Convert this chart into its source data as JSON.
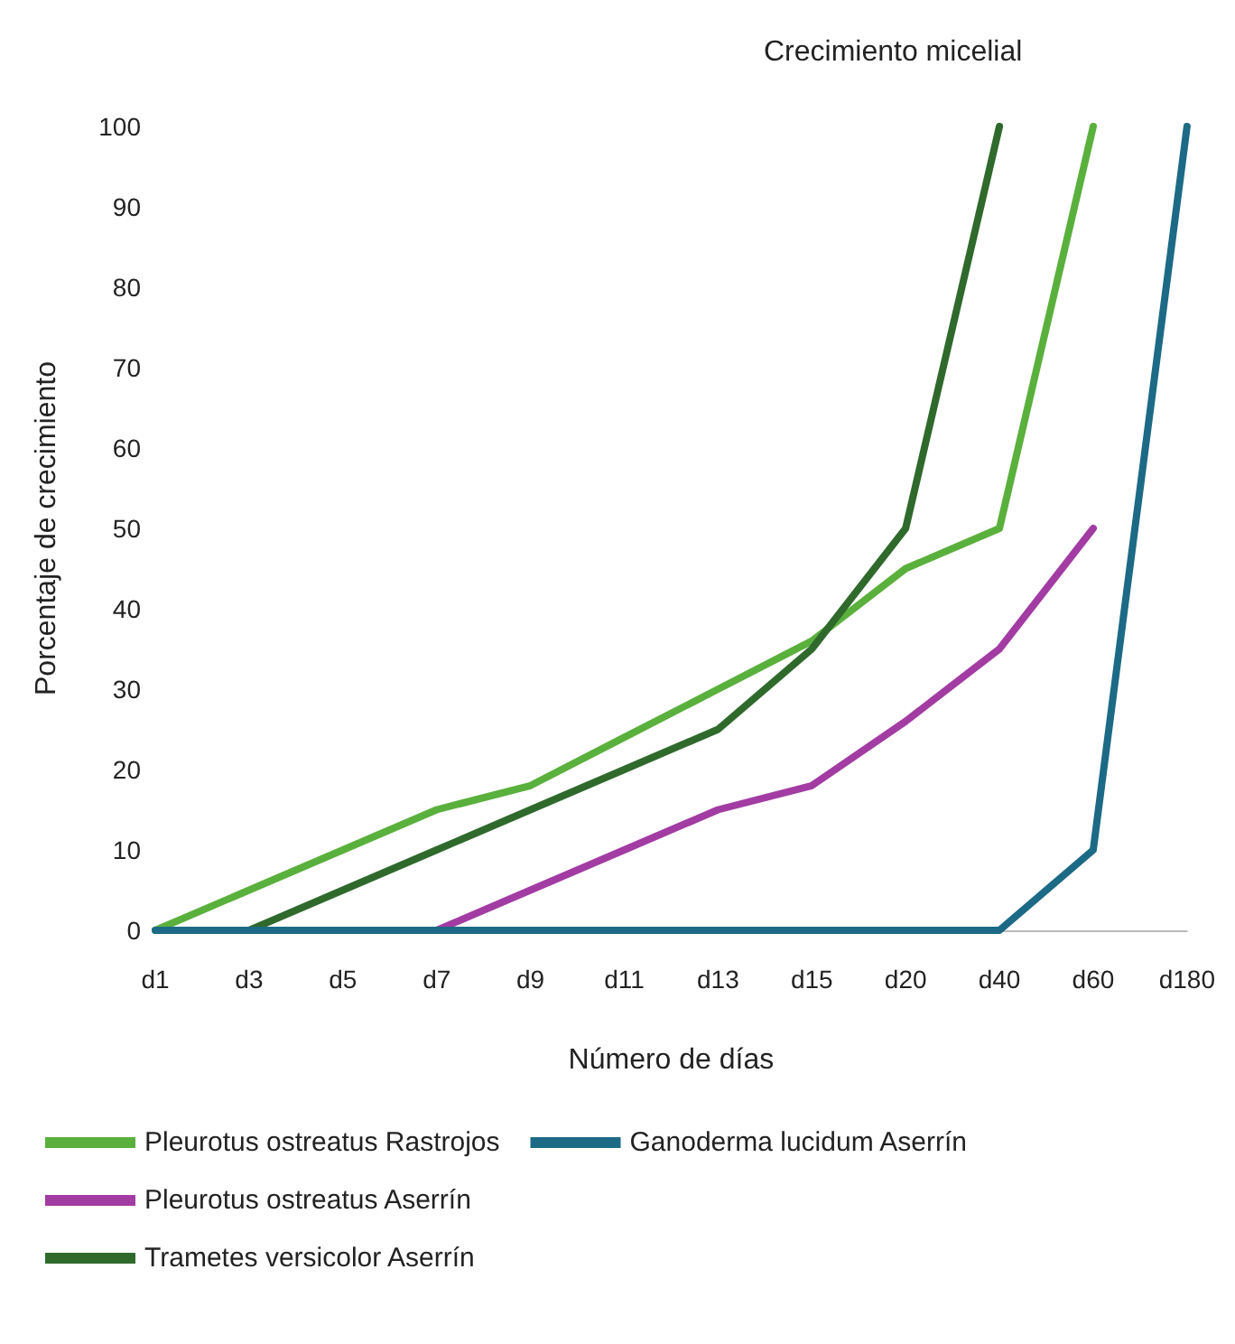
{
  "chart_data": {
    "type": "line",
    "title": "Crecimiento micelial",
    "xlabel": "Número de días",
    "ylabel": "Porcentaje de crecimiento",
    "categories": [
      "d1",
      "d3",
      "d5",
      "d7",
      "d9",
      "d11",
      "d13",
      "d15",
      "d20",
      "d40",
      "d60",
      "d180"
    ],
    "series": [
      {
        "name": "Pleurotus ostreatus Rastrojos",
        "color": "#5ab03c",
        "values": [
          0,
          5,
          10,
          15,
          18,
          24,
          30,
          36,
          45,
          50,
          100,
          null
        ]
      },
      {
        "name": "Pleurotus ostreatus Aserrín",
        "color": "#a23ca3",
        "values": [
          null,
          null,
          null,
          0,
          5,
          10,
          15,
          18,
          26,
          35,
          50,
          null
        ]
      },
      {
        "name": "Trametes versicolor Aserrín",
        "color": "#2f6a2c",
        "values": [
          null,
          0,
          5,
          10,
          15,
          20,
          25,
          35,
          50,
          100,
          null,
          null
        ]
      },
      {
        "name": "Ganoderma lucidum Aserrín",
        "color": "#1c6a85",
        "values": [
          0,
          0,
          0,
          0,
          0,
          0,
          0,
          0,
          0,
          0,
          10,
          100
        ]
      }
    ],
    "ylim": [
      0,
      100
    ],
    "yticks": [
      0,
      10,
      20,
      30,
      40,
      50,
      60,
      70,
      80,
      90,
      100
    ],
    "grid": false,
    "legend": "bottom",
    "marker": "none",
    "line_style": "solid"
  }
}
